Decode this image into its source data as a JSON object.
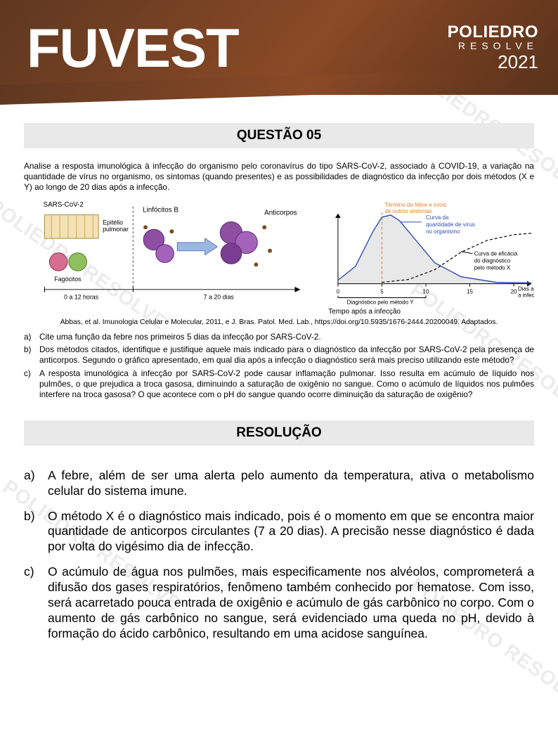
{
  "banner": {
    "title": "FUVEST",
    "brand_top": "POLIEDRO",
    "brand_mid": "RESOLVE",
    "year": "2021",
    "bg_gradient": [
      "#5e3820",
      "#7a4324",
      "#8a4a26",
      "#6e3b1f",
      "#5a331c"
    ]
  },
  "question": {
    "heading": "QUESTÃO 05",
    "intro": "Analise a resposta imunológica à infecção do organismo pelo coronavírus do tipo SARS-CoV-2, associado à COVID-19, a variação na quantidade de vírus no organismo, os sintomas (quando presentes) e as possibilidades de diagnóstico da infecção por dois métodos (X e Y) ao longo de 20 dias após a infecção.",
    "labels": {
      "virus": "SARS-CoV-2",
      "epithelium": "Epitélio pulmonar",
      "phagocytes": "Fagócitos",
      "lymphocytes": "Linfócitos B",
      "antibodies": "Anticorpos",
      "left_time_1": "0 a 12 horas",
      "left_time_2": "7 a 20 dias",
      "x_axis_caption": "Tempo após a infecção"
    },
    "chart": {
      "type": "line",
      "top_label": "Término da febre e início de outros sintomas",
      "top_label_color": "#e97c1f",
      "curve_virus_label": "Curva da quantidade de vírus no organismo",
      "curve_virus_color": "#2d4fb0",
      "curve_method_x_label": "Curva de eficácia do diagnóstico pelo método X",
      "curve_method_x_style": "dashed",
      "background_fill": "#e8e8e8",
      "axis_color": "#000000",
      "dashed_vline_x": 5,
      "xlim": [
        0,
        22
      ],
      "ylim": [
        0,
        1
      ],
      "xticks": [
        0,
        5,
        10,
        15,
        20
      ],
      "xtick_labels": [
        "0",
        "5",
        "10",
        "15",
        "20"
      ],
      "x_axis_label_right": "Dias após a infecção",
      "x_axis_below": "Diagnóstico pelo método Y",
      "method_y_span": [
        0,
        10
      ],
      "virus_curve_points": [
        [
          0,
          0.05
        ],
        [
          2,
          0.25
        ],
        [
          4,
          0.75
        ],
        [
          5,
          0.95
        ],
        [
          6,
          0.98
        ],
        [
          7,
          0.9
        ],
        [
          9,
          0.6
        ],
        [
          11,
          0.3
        ],
        [
          14,
          0.1
        ],
        [
          18,
          0.02
        ],
        [
          22,
          0.01
        ]
      ],
      "method_x_points": [
        [
          5,
          0.02
        ],
        [
          8,
          0.06
        ],
        [
          11,
          0.2
        ],
        [
          14,
          0.45
        ],
        [
          17,
          0.62
        ],
        [
          20,
          0.7
        ],
        [
          22,
          0.72
        ]
      ],
      "fontsize_labels": 8
    },
    "citation": "Abbas, et al.  Imunologia Celular e Molecular, 2011, e J. Bras. Patol. Med. Lab., https://doi.org/10.5935/1676-2444.20200049. Adaptados.",
    "items": {
      "a": "Cite uma função da febre nos primeiros 5 dias da infecção por SARS-CoV-2.",
      "b": "Dos métodos citados, identifique e justifique aquele mais indicado para o diagnóstico da infecção por SARS-CoV-2 pela presença de anticorpos. Segundo o gráfico apresentado, em qual dia após a infecção o diagnóstico será mais preciso utilizando este método?",
      "c": "A resposta imunológica à infecção por SARS-CoV-2 pode causar inflamação pulmonar. Isso resulta em acúmulo de líquido nos pulmões, o que prejudica a troca gasosa, diminuindo a saturação de oxigênio no sangue. Como o acúmulo de líquidos nos pulmões interfere na troca gasosa? O que acontece com o pH do sangue quando ocorre diminuição da saturação de oxigênio?"
    }
  },
  "resolution": {
    "heading": "RESOLUÇÃO",
    "items": {
      "a": "A febre, além de ser uma alerta pelo aumento da temperatura, ativa o metabolismo celular do sistema imune.",
      "b": "O método X é o diagnóstico mais indicado, pois é o momento em que se encontra maior quantidade de anticorpos circulantes (7 a 20 dias). A precisão nesse diagnóstico é dada por volta do vigésimo dia de infecção.",
      "c": "O acúmulo de água nos pulmões, mais especificamente nos alvéolos, comprometerá a difusão dos gases respiratórios, fenômeno também conhecido por hematose. Com isso, será acarretado pouca entrada de oxigênio e acúmulo de gás carbônico no corpo. Com o aumento de gás carbônico no sangue, será evidenciado uma queda no pH, devido à formação do ácido carbônico, resultando em uma acidose sanguínea."
    }
  },
  "watermark": {
    "text": "POLIEDRO RESOLVE",
    "color": "#ececec"
  }
}
